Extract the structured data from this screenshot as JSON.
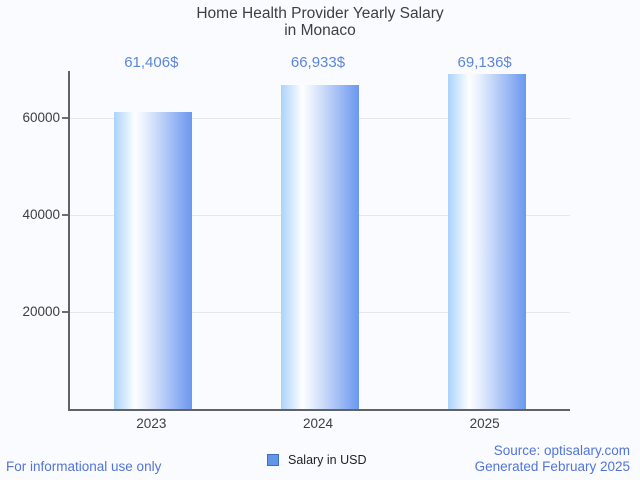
{
  "title": {
    "line1": "Home Health Provider Yearly Salary",
    "line2": "in Monaco"
  },
  "chart_data": {
    "type": "bar",
    "title": "Home Health Provider Yearly Salary in Monaco",
    "categories": [
      "2023",
      "2024",
      "2025"
    ],
    "values": [
      61406,
      66933,
      69136
    ],
    "value_labels": [
      "61,406$",
      "66,933$",
      "69,136$"
    ],
    "series": [
      {
        "name": "Salary in USD",
        "values": [
          61406,
          66933,
          69136
        ]
      }
    ],
    "xlabel": "",
    "ylabel": "",
    "ylim": [
      0,
      69810
    ],
    "yticks": [
      20000,
      40000,
      60000
    ],
    "ytick_labels": [
      "20000",
      "40000",
      "60000"
    ],
    "grid": true,
    "legend_position": "bottom"
  },
  "legend": {
    "label": "Salary in USD"
  },
  "footer": {
    "left": "For informational use only",
    "source": "Source: optisalary.com",
    "generated": "Generated February 2025"
  },
  "colors": {
    "background": "#fafbff",
    "title_text": "#3c4043",
    "axis_line": "#5f6368",
    "gridline": "#e4e7ea",
    "value_label_text": "#5b85da",
    "footer_text": "#5274d6",
    "legend_swatch_fill": "#6095e8",
    "legend_swatch_border": "#3f6dc4",
    "bar_gradient_left": "#aad3fb",
    "bar_gradient_mid": "#ffffff",
    "bar_gradient_right": "#6b97ee"
  }
}
